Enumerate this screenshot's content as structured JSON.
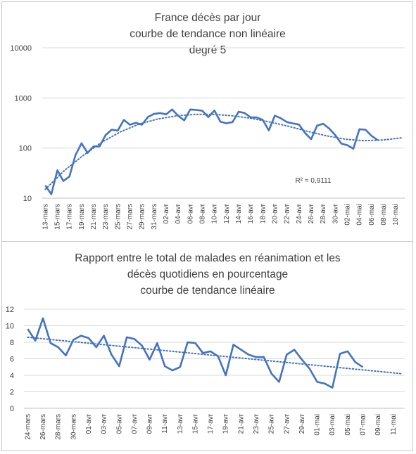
{
  "chart_data": [
    {
      "type": "line",
      "title": [
        "France décès par jour",
        "courbe de tendance non linéaire",
        "degré 5"
      ],
      "y_scale": "log",
      "ylim": [
        10,
        10000
      ],
      "y_ticks": [
        "10",
        "100",
        "1000",
        "10000"
      ],
      "grid": "horizontal",
      "x_tick_labels": [
        "13-mars",
        "15-mars",
        "17-mars",
        "19-mars",
        "21-mars",
        "23-mars",
        "25-mars",
        "27-mars",
        "29-mars",
        "31-mars",
        "02-avr",
        "04-avr",
        "06-avr",
        "08-avr",
        "10-avr",
        "12-avr",
        "14-avr",
        "16-avr",
        "18-avr",
        "20-avr",
        "22-avr",
        "24-avr",
        "26-avr",
        "28-avr",
        "30-avr",
        "02-mai",
        "04-mai",
        "06-mai",
        "08-mai",
        "10-mai"
      ],
      "x_start": "13-mars",
      "series": [
        {
          "values": [
            18,
            12,
            36,
            22,
            27,
            72,
            125,
            80,
            108,
            108,
            182,
            233,
            223,
            365,
            292,
            318,
            292,
            418,
            480,
            499,
            471,
            588,
            441,
            357,
            588,
            574,
            554,
            415,
            561,
            335,
            312,
            330,
            530,
            500,
            410,
            408,
            364,
            225,
            444,
            392,
            330,
            310,
            295,
            200,
            150,
            280,
            305,
            245,
            181,
            123,
            114,
            97,
            237,
            233,
            175,
            145
          ],
          "color": "#4472c4"
        }
      ],
      "trendline": {
        "type": "polynomial",
        "degree": 5,
        "label": "R² = 0,9111",
        "values": [
          15,
          35,
          70,
          130,
          210,
          300,
          380,
          440,
          470,
          470,
          440,
          390,
          330,
          270,
          215,
          175,
          150,
          140,
          145,
          160
        ],
        "style": "dotted"
      }
    },
    {
      "type": "line",
      "title": [
        "Rapport entre le total de malades en réanimation et les",
        "décès quotidiens en pourcentage",
        "courbe de tendance linéaire"
      ],
      "ylim": [
        0,
        12
      ],
      "y_ticks": [
        "0",
        "2",
        "4",
        "6",
        "8",
        "10",
        "12"
      ],
      "grid": "horizontal",
      "x_tick_labels": [
        "24-mars",
        "26-mars",
        "28-mars",
        "30-mars",
        "01-avr",
        "03-avr",
        "05-avr",
        "07-avr",
        "09-avr",
        "11-avr",
        "13-avr",
        "15-avr",
        "17-avr",
        "19-avr",
        "21-avr",
        "23-avr",
        "25-avr",
        "27-avr",
        "29-avr",
        "01-mai",
        "03-mai",
        "05-mai",
        "07-mai",
        "09-mai",
        "11-mai"
      ],
      "x_start": "24-mars",
      "series": [
        {
          "values": [
            9.6,
            8.2,
            10.9,
            7.9,
            7.4,
            6.4,
            8.3,
            8.8,
            8.5,
            7.4,
            8.8,
            6.5,
            5.1,
            8.6,
            8.4,
            7.6,
            5.9,
            7.9,
            5.1,
            4.6,
            5.0,
            8.0,
            7.9,
            6.7,
            6.9,
            6.3,
            4.0,
            7.7,
            7.1,
            6.5,
            6.2,
            6.2,
            4.2,
            3.2,
            6.5,
            7.1,
            5.9,
            4.8,
            3.2,
            3.0,
            2.5,
            6.6,
            6.9,
            5.6,
            5.0
          ],
          "color": "#4472c4"
        }
      ],
      "trendline": {
        "type": "linear",
        "start": 8.6,
        "end": 4.2,
        "style": "dotted"
      }
    }
  ]
}
